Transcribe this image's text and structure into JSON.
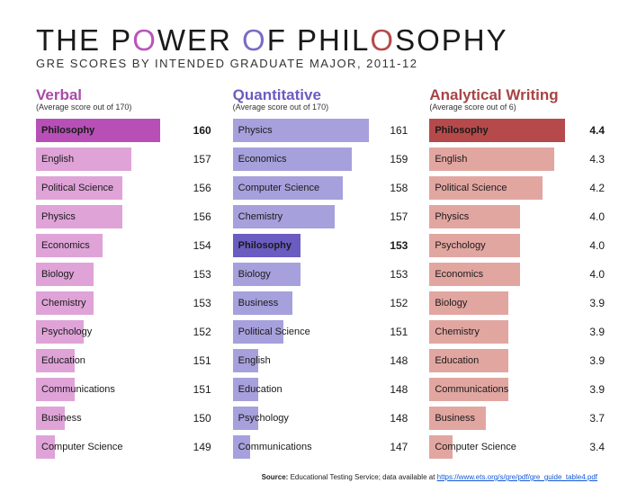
{
  "title_parts": [
    "THE P",
    "O",
    "WER ",
    "O",
    "F PHIL",
    "O",
    "S",
    "O",
    "PHY"
  ],
  "subtitle": "GRE SCORES BY INTENDED GRADUATE MAJOR, 2011-12",
  "background_color": "#ffffff",
  "columns": [
    {
      "key": "verbal",
      "title": "Verbal",
      "sublabel": "(Average score out of 170)",
      "title_color": "#a94aa9",
      "bar_color": "#dfa3d8",
      "highlight_color": "#b74fb7",
      "scale_min": 147,
      "scale_max": 163,
      "track_width": 170,
      "rows": [
        {
          "label": "Philosophy",
          "value": 160,
          "highlight": true
        },
        {
          "label": "English",
          "value": 157
        },
        {
          "label": "Political Science",
          "value": 156
        },
        {
          "label": "Physics",
          "value": 156
        },
        {
          "label": "Economics",
          "value": 154
        },
        {
          "label": "Biology",
          "value": 153
        },
        {
          "label": "Chemistry",
          "value": 153
        },
        {
          "label": "Psychology",
          "value": 152
        },
        {
          "label": "Education",
          "value": 151
        },
        {
          "label": "Communications",
          "value": 151
        },
        {
          "label": "Business",
          "value": 150
        },
        {
          "label": "Computer Science",
          "value": 149
        }
      ]
    },
    {
      "key": "quant",
      "title": "Quantitative",
      "sublabel": "(Average score out of 170)",
      "title_color": "#6a5cc0",
      "bar_color": "#a6a0dc",
      "highlight_color": "#6a5cc0",
      "scale_min": 145,
      "scale_max": 163,
      "track_width": 170,
      "rows": [
        {
          "label": "Physics",
          "value": 161
        },
        {
          "label": "Economics",
          "value": 159
        },
        {
          "label": "Computer Science",
          "value": 158
        },
        {
          "label": "Chemistry",
          "value": 157
        },
        {
          "label": "Philosophy",
          "value": 153,
          "highlight": true
        },
        {
          "label": "Biology",
          "value": 153
        },
        {
          "label": "Business",
          "value": 152
        },
        {
          "label": "Political Science",
          "value": 151
        },
        {
          "label": "English",
          "value": 148
        },
        {
          "label": "Education",
          "value": 148
        },
        {
          "label": "Psychology",
          "value": 148
        },
        {
          "label": "Communications",
          "value": 147
        }
      ]
    },
    {
      "key": "aw",
      "title": "Analytical Writing",
      "sublabel": "(Average score out of 6)",
      "title_color": "#a84444",
      "bar_color": "#e2a6a1",
      "highlight_color": "#b64a4a",
      "scale_min": 3.2,
      "scale_max": 4.55,
      "track_width": 170,
      "rows": [
        {
          "label": "Philosophy",
          "value": 4.4,
          "highlight": true
        },
        {
          "label": "English",
          "value": 4.3
        },
        {
          "label": "Political Science",
          "value": 4.2
        },
        {
          "label": "Physics",
          "value": 4.0
        },
        {
          "label": "Psychology",
          "value": 4.0
        },
        {
          "label": "Economics",
          "value": 4.0
        },
        {
          "label": "Biology",
          "value": 3.9
        },
        {
          "label": "Chemistry",
          "value": 3.9
        },
        {
          "label": "Education",
          "value": 3.9
        },
        {
          "label": "Communications",
          "value": 3.9
        },
        {
          "label": "Business",
          "value": 3.7
        },
        {
          "label": "Computer Science",
          "value": 3.4
        }
      ]
    }
  ],
  "source_label": "Source:",
  "source_text": " Educational Testing Service; data available at ",
  "source_link": "https://www.ets.org/s/gre/pdf/gre_guide_table4.pdf",
  "aw_decimals": 1
}
